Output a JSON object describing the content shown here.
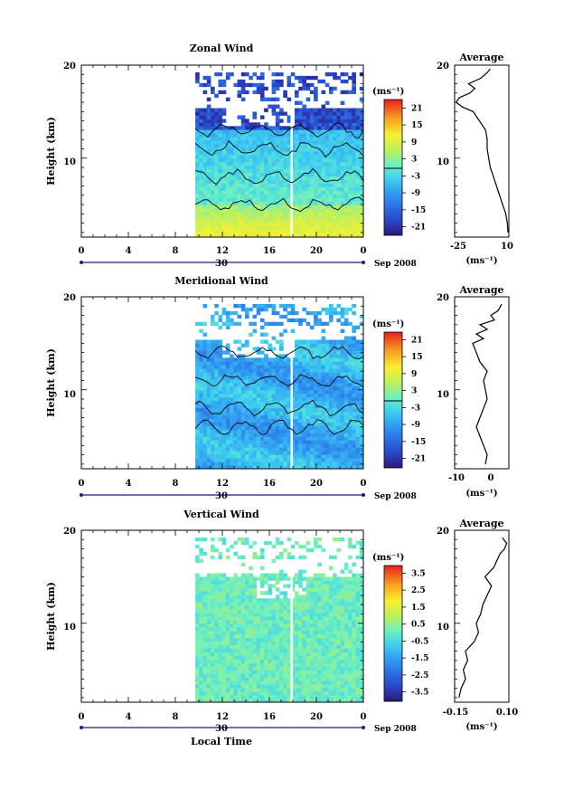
{
  "figure": {
    "xlabel": "Local Time",
    "date_label": "Sep 2008",
    "day_label": "30"
  },
  "chart_data": [
    {
      "type": "heatmap",
      "title": "Zonal Wind",
      "ylabel": "Height (km)",
      "xlabel": "Local Time",
      "x_ticks": [
        "0",
        "4",
        "8",
        "12",
        "16",
        "20",
        "0"
      ],
      "y_ticks": [
        "10",
        "20"
      ],
      "xlim": [
        0,
        24
      ],
      "ylim": [
        1.5,
        20
      ],
      "data_start_hour": 9.7,
      "gap_hour": 17.9,
      "colorbar": {
        "unit": "(ms⁻¹)",
        "ticks": [
          "21",
          "15",
          "9",
          "3",
          "-3",
          "-9",
          "-15",
          "-21"
        ],
        "range": [
          -24,
          24
        ],
        "zero_line": true
      },
      "average_profile": {
        "title": "Average",
        "xlabel": "(ms⁻¹)",
        "x_ticks": [
          "-25",
          "10"
        ],
        "y_ticks": [
          "10",
          "20"
        ],
        "xlim": [
          -25,
          10
        ],
        "points": [
          [
            9.5,
            2
          ],
          [
            9,
            3
          ],
          [
            8,
            4
          ],
          [
            6,
            5
          ],
          [
            4,
            6
          ],
          [
            2,
            7
          ],
          [
            0,
            8
          ],
          [
            -2,
            9
          ],
          [
            -3,
            10
          ],
          [
            -4,
            11
          ],
          [
            -4,
            12
          ],
          [
            -5,
            13
          ],
          [
            -7,
            13.5
          ],
          [
            -9,
            14
          ],
          [
            -11,
            14.5
          ],
          [
            -13,
            15
          ],
          [
            -20,
            15.5
          ],
          [
            -24,
            16
          ],
          [
            -22,
            16.5
          ],
          [
            -15,
            17
          ],
          [
            -12,
            17.5
          ],
          [
            -16,
            18
          ],
          [
            -8,
            18.6
          ],
          [
            -4,
            19.2
          ],
          [
            -2,
            19.6
          ]
        ]
      }
    },
    {
      "type": "heatmap",
      "title": "Meridional Wind",
      "ylabel": "Height (km)",
      "xlabel": "Local Time",
      "x_ticks": [
        "0",
        "4",
        "8",
        "12",
        "16",
        "20",
        "0"
      ],
      "y_ticks": [
        "10",
        "20"
      ],
      "xlim": [
        0,
        24
      ],
      "ylim": [
        1.5,
        20
      ],
      "data_start_hour": 9.7,
      "gap_hour": 17.9,
      "colorbar": {
        "unit": "(ms⁻¹)",
        "ticks": [
          "21",
          "15",
          "9",
          "3",
          "-3",
          "-9",
          "-15",
          "-21"
        ],
        "range": [
          -24,
          24
        ],
        "zero_line": true
      },
      "average_profile": {
        "title": "Average",
        "xlabel": "(ms⁻¹)",
        "x_ticks": [
          "-10",
          "0"
        ],
        "y_ticks": [
          "10",
          "20"
        ],
        "xlim": [
          -10,
          5
        ],
        "points": [
          [
            -1.5,
            2
          ],
          [
            -1,
            3
          ],
          [
            -2,
            4
          ],
          [
            -3,
            5
          ],
          [
            -4,
            6
          ],
          [
            -3,
            7
          ],
          [
            -2,
            8
          ],
          [
            -1,
            9
          ],
          [
            -1.5,
            10
          ],
          [
            -2,
            11
          ],
          [
            -1,
            12
          ],
          [
            -3,
            13
          ],
          [
            -4,
            14
          ],
          [
            -5,
            15
          ],
          [
            -2,
            15.5
          ],
          [
            -4,
            16
          ],
          [
            -1,
            16.5
          ],
          [
            -3,
            17
          ],
          [
            1,
            17.5
          ],
          [
            0,
            18
          ],
          [
            2,
            18.5
          ],
          [
            3,
            19.2
          ]
        ]
      }
    },
    {
      "type": "heatmap",
      "title": "Vertical Wind",
      "ylabel": "Height (km)",
      "xlabel": "Local Time",
      "x_ticks": [
        "0",
        "4",
        "8",
        "12",
        "16",
        "20",
        "0"
      ],
      "y_ticks": [
        "10",
        "20"
      ],
      "xlim": [
        0,
        24
      ],
      "ylim": [
        1.5,
        20
      ],
      "data_start_hour": 9.7,
      "gap_hour": 17.9,
      "colorbar": {
        "unit": "(ms⁻¹)",
        "ticks": [
          "3.5",
          "2.5",
          "1.5",
          "0.5",
          "-0.5",
          "-1.5",
          "-2.5",
          "-3.5"
        ],
        "range": [
          -4,
          4
        ],
        "zero_line": false
      },
      "average_profile": {
        "title": "Average",
        "xlabel": "(ms⁻¹)",
        "x_ticks": [
          "-0.15",
          "0.10"
        ],
        "y_ticks": [
          "10",
          "20"
        ],
        "xlim": [
          -0.15,
          0.1
        ],
        "points": [
          [
            -0.13,
            2
          ],
          [
            -0.12,
            3
          ],
          [
            -0.1,
            4
          ],
          [
            -0.11,
            5
          ],
          [
            -0.09,
            6
          ],
          [
            -0.1,
            7
          ],
          [
            -0.06,
            8
          ],
          [
            -0.04,
            9
          ],
          [
            -0.05,
            10
          ],
          [
            -0.03,
            11
          ],
          [
            -0.02,
            12
          ],
          [
            0.0,
            13
          ],
          [
            0.02,
            14
          ],
          [
            -0.01,
            15
          ],
          [
            0.03,
            16
          ],
          [
            0.05,
            17
          ],
          [
            0.06,
            17.5
          ],
          [
            0.08,
            18
          ],
          [
            0.09,
            18.6
          ],
          [
            0.07,
            19.2
          ]
        ]
      }
    }
  ]
}
